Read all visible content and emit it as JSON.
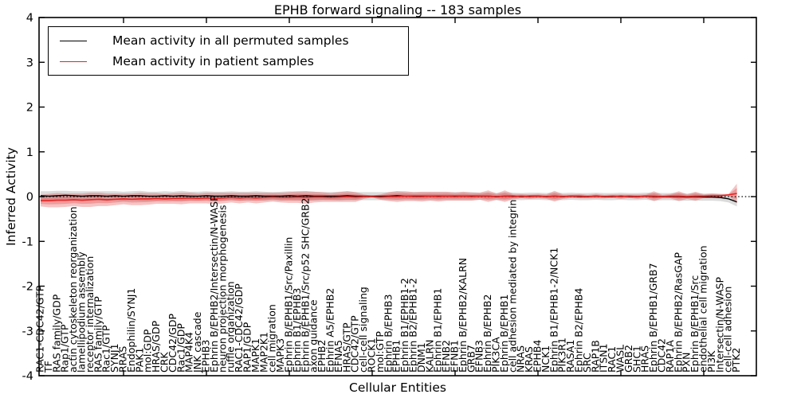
{
  "chart_data": {
    "type": "line",
    "title": "EPHB forward signaling -- 183 samples",
    "xlabel": "Cellular Entities",
    "ylabel": "Inferred Activity",
    "ylim": [
      -4,
      4
    ],
    "yticks": [
      4,
      3,
      2,
      1,
      0,
      -1,
      -2,
      -3,
      -4
    ],
    "xtick_every": 10,
    "grid": false,
    "zero_line": "dotted",
    "legend_position": "upper left",
    "legend": [
      {
        "label": "Mean activity in all permuted samples",
        "color": "#000000"
      },
      {
        "label": "Mean activity in patient samples",
        "color": "#e62222"
      }
    ],
    "categories": [
      "RAC1-CDC42/GTP",
      "TF",
      "RAS family/GDP",
      "Rap1/GTP",
      "actin cytoskeleton reorganization",
      "lamellipodium assembly",
      "receptor internalization",
      "RAS family/GTP",
      "Rac1/GTP",
      "SYNJ1",
      "RRAS",
      "Endophilin/SYNJ1",
      "PAK1",
      "mol:GDP",
      "HRAS/GDP",
      "CRK",
      "CDC42/GDP",
      "Rac1/GDP",
      "MAP4K4",
      "JNK cascade",
      "EPHB3",
      "Ephrin B/EPHB2/Intersectin/N-WASP",
      "neuron projection morphogenesis",
      "ruffle organization",
      "RAC1-CDC42/GDP",
      "RAP1/GDP",
      "MAPK1",
      "MAP2K1",
      "cell migration",
      "MAPK3",
      "Ephrin B/EPHB1/Src/Paxillin",
      "Ephrin B1/EPHB3",
      "Ephrin B/EPHB1/Src/p52 SHC/GRB2",
      "axon guidance",
      "EPHB2",
      "Ephrin A5/EPHB2",
      "EFNA5",
      "HRAS/GTP",
      "CDC42/GTP",
      "cell-cell signaling",
      "ROCK1",
      "mol:GTP",
      "Ephrin B/EPHB3",
      "EPHB1",
      "Ephrin B1/EPHB1-2",
      "Ephrin B2/EPHB1-2",
      "DNM1",
      "KALRN",
      "Ephrin B1/EPHB1",
      "EFNB2",
      "EFNB1",
      "Ephrin B/EPHB2/KALRN",
      "GRB7",
      "EFNB3",
      "Ephrin B/EPHB2",
      "PIK3CA",
      "Ephrin B/EPHB1",
      "cell adhesion mediated by integrin",
      "NRAS",
      "KRAS",
      "EPHB4",
      "NCK1",
      "Ephrin B1/EPHB1-2/NCK1",
      "PIK3R1",
      "RASA1",
      "Ephrin B2/EPHB4",
      "SRC",
      "RAP1B",
      "ITSN1",
      "RAC1",
      "WASL",
      "GRB2",
      "SHC1",
      "HRAS",
      "Ephrin B/EPHB1/GRB7",
      "CDC42",
      "RAP1A",
      "Ephrin B/EPHB2/RasGAP",
      "PXN",
      "Ephrin B/EPHB1/Src",
      "endothelial cell migration",
      "PI3K",
      "Intersectin/N-WASP",
      "cell-cell adhesion",
      "PTK2"
    ],
    "series": [
      {
        "name": "Mean activity in all permuted samples",
        "color": "#000000",
        "band_color": "rgba(0,0,0,0.14)",
        "values": [
          0.02,
          0.01,
          0.02,
          0.03,
          0.02,
          0.01,
          0.02,
          0.02,
          0.01,
          0.02,
          0.01,
          0.02,
          0.02,
          0.01,
          0.01,
          0.02,
          0.01,
          0.02,
          0.01,
          0.01,
          0.02,
          0.01,
          0.01,
          0.02,
          0.01,
          0.01,
          0.02,
          0.01,
          0.01,
          0.01,
          0.02,
          0.01,
          0.02,
          0.01,
          0.01,
          0.01,
          0.01,
          0.02,
          0.01,
          0.01,
          0.01,
          0.01,
          0.01,
          0.02,
          0.01,
          0.01,
          0.01,
          0.01,
          0.01,
          0.01,
          0.01,
          0.01,
          0.01,
          0.01,
          0.01,
          0.0,
          0.01,
          0.01,
          0.0,
          0.01,
          0.01,
          0.0,
          0.01,
          0.0,
          0.01,
          0.0,
          0.0,
          0.01,
          0.0,
          0.0,
          0.01,
          0.0,
          0.0,
          0.01,
          0.0,
          0.0,
          0.0,
          0.0,
          -0.01,
          0.0,
          -0.01,
          -0.01,
          -0.02,
          -0.05,
          -0.12
        ],
        "band": [
          0.1,
          0.11,
          0.11,
          0.1,
          0.1,
          0.11,
          0.1,
          0.1,
          0.11,
          0.1,
          0.1,
          0.1,
          0.11,
          0.1,
          0.1,
          0.1,
          0.1,
          0.11,
          0.1,
          0.1,
          0.1,
          0.1,
          0.1,
          0.1,
          0.1,
          0.1,
          0.1,
          0.1,
          0.09,
          0.1,
          0.1,
          0.1,
          0.1,
          0.1,
          0.09,
          0.09,
          0.1,
          0.1,
          0.09,
          0.09,
          0.09,
          0.09,
          0.09,
          0.1,
          0.09,
          0.09,
          0.09,
          0.09,
          0.09,
          0.09,
          0.09,
          0.09,
          0.09,
          0.08,
          0.09,
          0.08,
          0.09,
          0.08,
          0.08,
          0.08,
          0.08,
          0.08,
          0.09,
          0.08,
          0.08,
          0.08,
          0.08,
          0.08,
          0.08,
          0.08,
          0.08,
          0.08,
          0.08,
          0.08,
          0.09,
          0.08,
          0.08,
          0.09,
          0.08,
          0.09,
          0.08,
          0.08,
          0.08,
          0.08,
          0.1
        ]
      },
      {
        "name": "Mean activity in patient samples",
        "color": "#e62222",
        "band_color": "rgba(221,60,60,0.30)",
        "values": [
          -0.09,
          -0.09,
          -0.08,
          -0.08,
          -0.07,
          -0.08,
          -0.07,
          -0.06,
          -0.07,
          -0.06,
          -0.05,
          -0.06,
          -0.05,
          -0.05,
          -0.04,
          -0.05,
          -0.04,
          -0.04,
          -0.03,
          -0.04,
          -0.03,
          -0.04,
          -0.03,
          -0.02,
          -0.03,
          -0.02,
          -0.03,
          -0.02,
          -0.01,
          -0.02,
          -0.02,
          -0.01,
          -0.02,
          -0.01,
          -0.01,
          -0.02,
          -0.01,
          0.0,
          -0.01,
          0.0,
          0.0,
          -0.01,
          0.0,
          0.0,
          0.01,
          0.0,
          0.0,
          0.01,
          0.0,
          0.01,
          0.0,
          0.01,
          0.0,
          0.01,
          0.01,
          0.0,
          0.01,
          0.0,
          0.01,
          0.0,
          0.01,
          0.0,
          0.01,
          0.0,
          0.01,
          0.01,
          0.0,
          0.01,
          0.0,
          0.01,
          0.0,
          0.01,
          0.0,
          0.01,
          0.01,
          0.0,
          0.01,
          0.01,
          0.0,
          0.01,
          0.01,
          0.02,
          0.02,
          0.04,
          0.07
        ],
        "band": [
          0.13,
          0.15,
          0.16,
          0.15,
          0.14,
          0.15,
          0.16,
          0.15,
          0.14,
          0.13,
          0.12,
          0.13,
          0.14,
          0.13,
          0.12,
          0.11,
          0.12,
          0.13,
          0.12,
          0.11,
          0.12,
          0.13,
          0.12,
          0.11,
          0.12,
          0.11,
          0.12,
          0.11,
          0.1,
          0.11,
          0.12,
          0.13,
          0.14,
          0.12,
          0.11,
          0.1,
          0.11,
          0.12,
          0.11,
          0.05,
          0.02,
          0.06,
          0.1,
          0.12,
          0.11,
          0.1,
          0.11,
          0.1,
          0.11,
          0.1,
          0.09,
          0.1,
          0.09,
          0.08,
          0.13,
          0.07,
          0.13,
          0.06,
          0.05,
          0.05,
          0.05,
          0.05,
          0.12,
          0.05,
          0.04,
          0.05,
          0.04,
          0.05,
          0.04,
          0.04,
          0.05,
          0.04,
          0.05,
          0.04,
          0.11,
          0.04,
          0.05,
          0.11,
          0.05,
          0.1,
          0.04,
          0.05,
          0.04,
          0.02,
          0.22
        ]
      }
    ]
  }
}
